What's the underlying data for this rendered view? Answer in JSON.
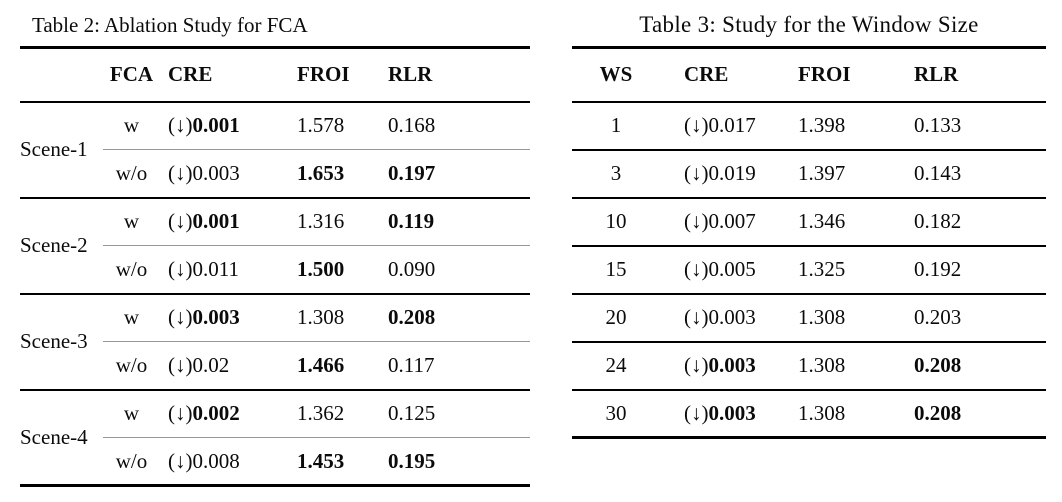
{
  "table2": {
    "caption": "Table 2: Ablation Study for FCA",
    "columns": {
      "scene": "",
      "fca": "FCA",
      "cre": "CRE",
      "froi": "FROI",
      "rlr": "RLR"
    },
    "arrow_prefix": "(↓)",
    "groups": [
      {
        "scene": "Scene-1",
        "rows": [
          {
            "fca": "w",
            "cre": "0.001",
            "cre_bold": true,
            "froi": "1.578",
            "froi_bold": false,
            "rlr": "0.168",
            "rlr_bold": false
          },
          {
            "fca": "w/o",
            "cre": "0.003",
            "cre_bold": false,
            "froi": "1.653",
            "froi_bold": true,
            "rlr": "0.197",
            "rlr_bold": true
          }
        ]
      },
      {
        "scene": "Scene-2",
        "rows": [
          {
            "fca": "w",
            "cre": "0.001",
            "cre_bold": true,
            "froi": "1.316",
            "froi_bold": false,
            "rlr": "0.119",
            "rlr_bold": true
          },
          {
            "fca": "w/o",
            "cre": "0.011",
            "cre_bold": false,
            "froi": "1.500",
            "froi_bold": true,
            "rlr": "0.090",
            "rlr_bold": false
          }
        ]
      },
      {
        "scene": "Scene-3",
        "rows": [
          {
            "fca": "w",
            "cre": "0.003",
            "cre_bold": true,
            "froi": "1.308",
            "froi_bold": false,
            "rlr": "0.208",
            "rlr_bold": true
          },
          {
            "fca": "w/o",
            "cre": "0.02",
            "cre_bold": false,
            "froi": "1.466",
            "froi_bold": true,
            "rlr": "0.117",
            "rlr_bold": false
          }
        ]
      },
      {
        "scene": "Scene-4",
        "rows": [
          {
            "fca": "w",
            "cre": "0.002",
            "cre_bold": true,
            "froi": "1.362",
            "froi_bold": false,
            "rlr": "0.125",
            "rlr_bold": false
          },
          {
            "fca": "w/o",
            "cre": "0.008",
            "cre_bold": false,
            "froi": "1.453",
            "froi_bold": true,
            "rlr": "0.195",
            "rlr_bold": true
          }
        ]
      }
    ]
  },
  "table3": {
    "caption": "Table 3: Study for the Window Size",
    "columns": {
      "ws": "WS",
      "cre": "CRE",
      "froi": "FROI",
      "rlr": "RLR"
    },
    "arrow_prefix": "(↓)",
    "rows": [
      {
        "ws": "1",
        "cre": "0.017",
        "cre_bold": false,
        "froi": "1.398",
        "froi_bold": false,
        "rlr": "0.133",
        "rlr_bold": false
      },
      {
        "ws": "3",
        "cre": "0.019",
        "cre_bold": false,
        "froi": "1.397",
        "froi_bold": false,
        "rlr": "0.143",
        "rlr_bold": false
      },
      {
        "ws": "10",
        "cre": "0.007",
        "cre_bold": false,
        "froi": "1.346",
        "froi_bold": false,
        "rlr": "0.182",
        "rlr_bold": false
      },
      {
        "ws": "15",
        "cre": "0.005",
        "cre_bold": false,
        "froi": "1.325",
        "froi_bold": false,
        "rlr": "0.192",
        "rlr_bold": false
      },
      {
        "ws": "20",
        "cre": "0.003",
        "cre_bold": false,
        "froi": "1.308",
        "froi_bold": false,
        "rlr": "0.203",
        "rlr_bold": false
      },
      {
        "ws": "24",
        "cre": "0.003",
        "cre_bold": true,
        "froi": "1.308",
        "froi_bold": false,
        "rlr": "0.208",
        "rlr_bold": true
      },
      {
        "ws": "30",
        "cre": "0.003",
        "cre_bold": true,
        "froi": "1.308",
        "froi_bold": false,
        "rlr": "0.208",
        "rlr_bold": true
      }
    ]
  }
}
